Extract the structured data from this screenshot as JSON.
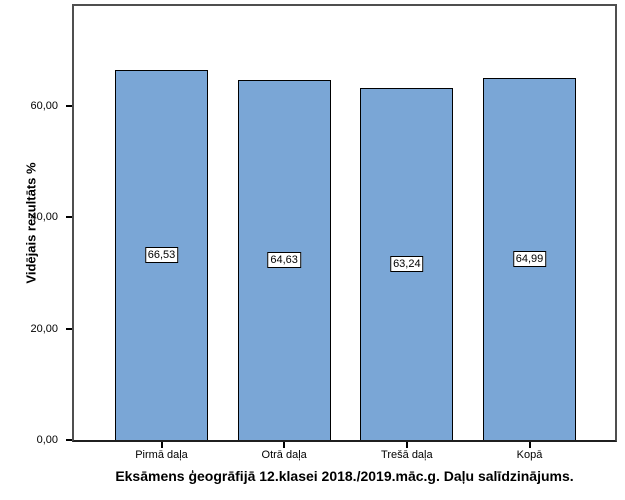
{
  "chart_data": {
    "type": "bar",
    "title": "Eksāmens ģeogrāfijā 12.klasei 2018./2019.māc.g. Daļu salīdzinājums.",
    "ylabel": "Vidējais rezultāts %",
    "xlabel": "",
    "categories": [
      "Pirmā daļa",
      "Otrā daļa",
      "Trešā daļa",
      "Kopā"
    ],
    "values": [
      66.53,
      64.63,
      63.24,
      64.99
    ],
    "value_labels": [
      "66,53",
      "64,63",
      "63,24",
      "64,99"
    ],
    "y_ticks": [
      {
        "value": 0,
        "label": "0,00"
      },
      {
        "value": 20,
        "label": "20,00"
      },
      {
        "value": 40,
        "label": "40,00"
      },
      {
        "value": 60,
        "label": "60,00"
      }
    ],
    "ylim": [
      0,
      78
    ],
    "grid": false,
    "legend_position": "none",
    "bar_color": "#7AA6D6",
    "bar_border_color": "#000000",
    "frame_color": "#4f4f4f",
    "axis_color": "#1f1f1f",
    "background_color": "#ffffff"
  }
}
